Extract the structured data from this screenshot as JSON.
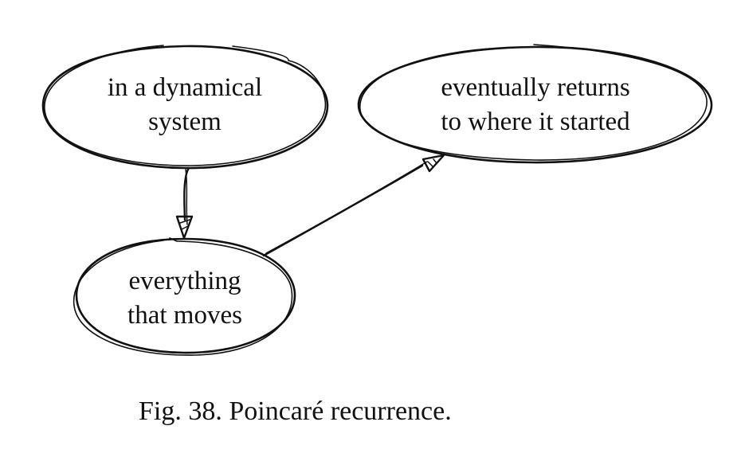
{
  "diagram": {
    "nodes": {
      "dynamical_system": {
        "line1": "in a dynamical",
        "line2": "system"
      },
      "returns": {
        "line1": "eventually returns",
        "line2": "to where it started"
      },
      "everything": {
        "line1": "everything",
        "line2": "that moves"
      }
    },
    "edges": [
      {
        "from": "dynamical_system",
        "to": "everything"
      },
      {
        "from": "everything",
        "to": "returns"
      }
    ]
  },
  "caption": "Fig. 38. Poincaré recurrence.",
  "colors": {
    "ink": "#111111",
    "background": "#ffffff"
  }
}
